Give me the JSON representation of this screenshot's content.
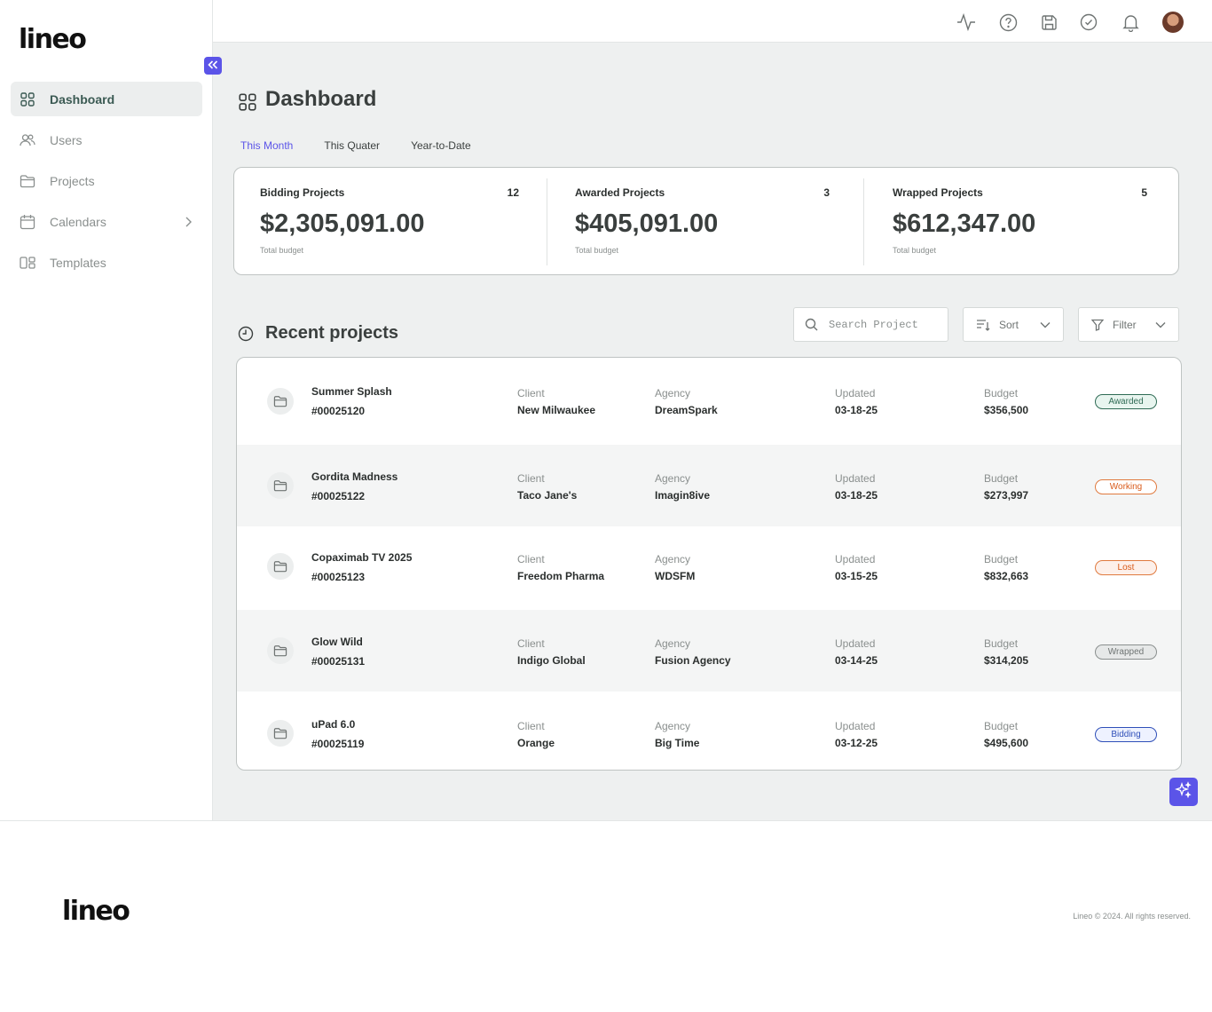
{
  "brand": {
    "logo": "lineo"
  },
  "sidebar": {
    "items": [
      {
        "label": "Dashboard",
        "icon": "grid-icon",
        "active": true
      },
      {
        "label": "Users",
        "icon": "users-icon"
      },
      {
        "label": "Projects",
        "icon": "folder-icon"
      },
      {
        "label": "Calendars",
        "icon": "calendar-icon",
        "has_chevron": true
      },
      {
        "label": "Templates",
        "icon": "templates-icon"
      }
    ]
  },
  "topbar": {
    "icons": [
      "activity-icon",
      "help-icon",
      "save-icon",
      "check-circle-icon",
      "bell-icon",
      "avatar"
    ]
  },
  "page": {
    "title": "Dashboard"
  },
  "tabs": [
    {
      "label": "This Month",
      "active": true
    },
    {
      "label": "This Quater"
    },
    {
      "label": "Year-to-Date"
    }
  ],
  "stats": [
    {
      "label": "Bidding Projects",
      "count": "12",
      "amount": "$2,305,091.00",
      "sub": "Total budget"
    },
    {
      "label": "Awarded Projects",
      "count": "3",
      "amount": "$405,091.00",
      "sub": "Total budget"
    },
    {
      "label": "Wrapped Projects",
      "count": "5",
      "amount": "$612,347.00",
      "sub": "Total budget"
    }
  ],
  "recent": {
    "title": "Recent projects",
    "search_placeholder": "Search Project",
    "sort_label": "Sort",
    "filter_label": "Filter",
    "column_labels": {
      "client": "Client",
      "agency": "Agency",
      "updated": "Updated",
      "budget": "Budget"
    },
    "rows": [
      {
        "name": "Summer Splash",
        "id": "#00025120",
        "client": "New Milwaukee",
        "agency": "DreamSpark",
        "updated": "03-18-25",
        "budget": "$356,500",
        "status": "Awarded"
      },
      {
        "name": "Gordita Madness",
        "id": "#00025122",
        "client": "Taco Jane's",
        "agency": "Imagin8ive",
        "updated": "03-18-25",
        "budget": "$273,997",
        "status": "Working"
      },
      {
        "name": "Copaximab TV 2025",
        "id": "#00025123",
        "client": "Freedom Pharma",
        "agency": "WDSFM",
        "updated": "03-15-25",
        "budget": "$832,663",
        "status": "Lost"
      },
      {
        "name": "Glow Wild",
        "id": "#00025131",
        "client": "Indigo Global",
        "agency": "Fusion Agency",
        "updated": "03-14-25",
        "budget": "$314,205",
        "status": "Wrapped"
      },
      {
        "name": "uPad 6.0",
        "id": "#00025119",
        "client": "Orange",
        "agency": "Big Time",
        "updated": "03-12-25",
        "budget": "$495,600",
        "status": "Bidding"
      }
    ]
  },
  "status_colors": {
    "Awarded": {
      "fg": "#2f6b55",
      "bg": "#e8f5ef",
      "border": "#2f6b55"
    },
    "Working": {
      "fg": "#d95a1a",
      "bg": "#ffffff",
      "border": "#e07a3f"
    },
    "Lost": {
      "fg": "#d95a1a",
      "bg": "#fdf0ea",
      "border": "#e07a3f"
    },
    "Wrapped": {
      "fg": "#6f7473",
      "bg": "#e6e8e8",
      "border": "#8a8f8e"
    },
    "Bidding": {
      "fg": "#2f4fb8",
      "bg": "#eef2ff",
      "border": "#2f4fb8"
    }
  },
  "accent": "#5b54e8",
  "footer": {
    "logo": "lineo",
    "copyright": "Lineo © 2024.  All rights reserved."
  }
}
